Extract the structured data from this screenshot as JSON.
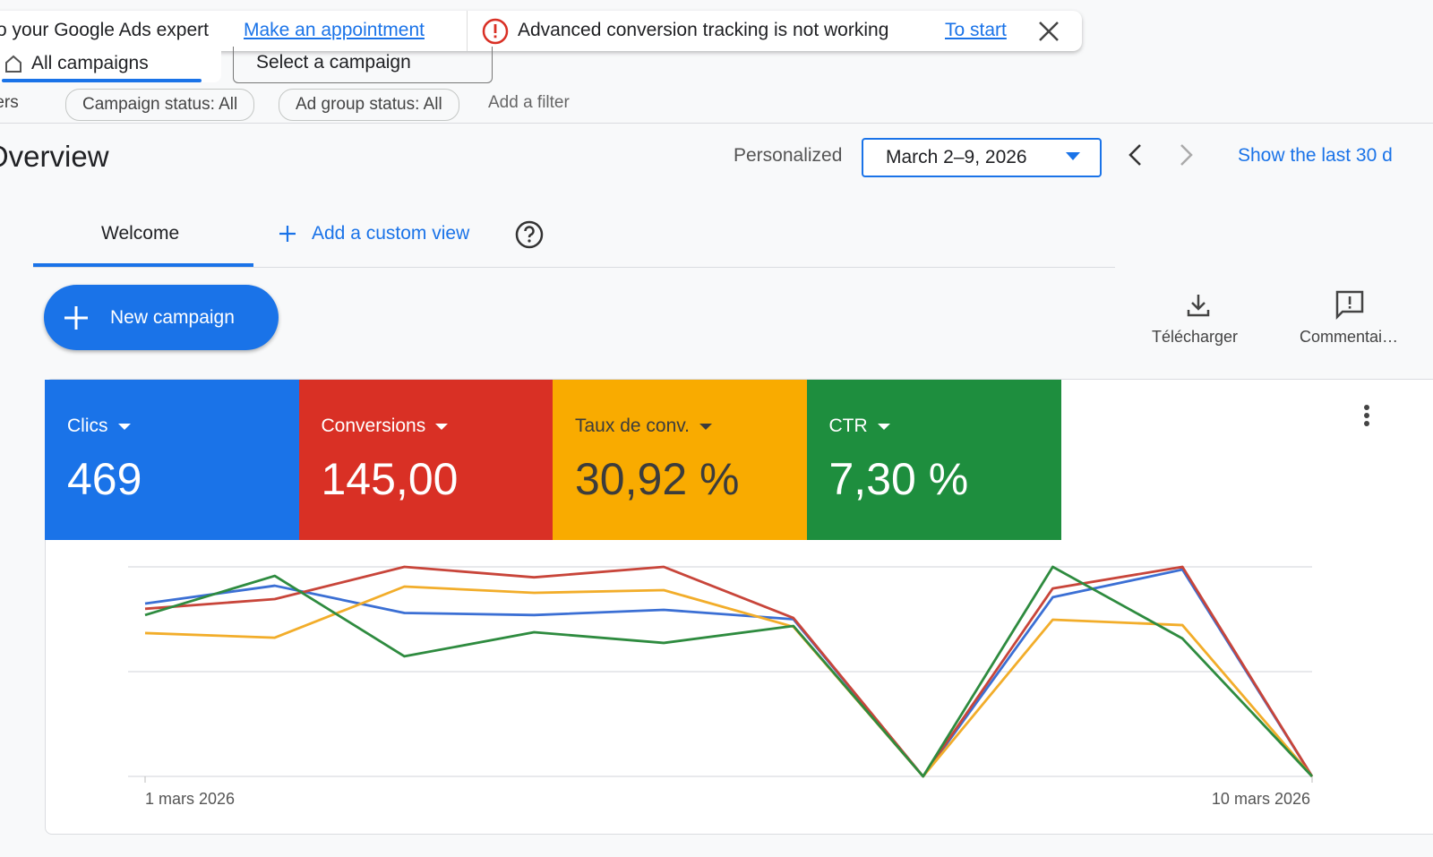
{
  "notification": {
    "message": "o your Google Ads expert",
    "appointment_link": "Make an appointment",
    "alert": "Advanced conversion tracking is not working",
    "start_link": "To start"
  },
  "selectors": [
    "All campaigns",
    "Select a campaign"
  ],
  "filters": [
    "Filters",
    "Campaign status: All",
    "Ad group status: All",
    "Add a filter"
  ],
  "header": {
    "title": "Overview",
    "date_mode": "Personalized",
    "date_range": "March 2–9, 2026",
    "shortcut": "Show the last 30 d"
  },
  "tabs": [
    "Welcome",
    "Add a custom view"
  ],
  "new_campaign": "New campaign",
  "actions": [
    "Télécharger",
    "Commentai…"
  ],
  "chart_data": {
    "type": "line",
    "categories": [
      "1 mars 2026",
      null,
      null,
      null,
      null,
      null,
      null,
      null,
      null,
      "10 mars 2026"
    ],
    "ylim": [
      0,
      100
    ],
    "yticks": [
      0,
      50,
      100
    ],
    "grid": true,
    "series": [
      {
        "name": "Clics",
        "summary": "469",
        "color": "#1a73e8",
        "line_color": "#3b6fd4",
        "values": [
          82.5,
          91,
          78,
          77,
          79.5,
          75,
          0,
          85.5,
          98.7,
          0
        ]
      },
      {
        "name": "Conversions",
        "summary": "145,00",
        "color": "#d93025",
        "line_color": "#c8453a",
        "values": [
          80,
          84.6,
          100,
          95,
          100,
          75.6,
          0,
          89.7,
          100,
          0
        ]
      },
      {
        "name": "Taux de conv.",
        "summary": "30,92 %",
        "color": "#f9ab00",
        "line_color": "#f2ad2a",
        "values": [
          68.4,
          66.2,
          90.6,
          87.6,
          88.9,
          71.4,
          0,
          74.8,
          72.2,
          0
        ]
      },
      {
        "name": "CTR",
        "summary": "7,30 %",
        "color": "#1e8e3e",
        "line_color": "#2e8b3f",
        "values": [
          77,
          95.7,
          57.3,
          68.8,
          63.7,
          71.8,
          0,
          100,
          65.8,
          0
        ]
      }
    ]
  }
}
